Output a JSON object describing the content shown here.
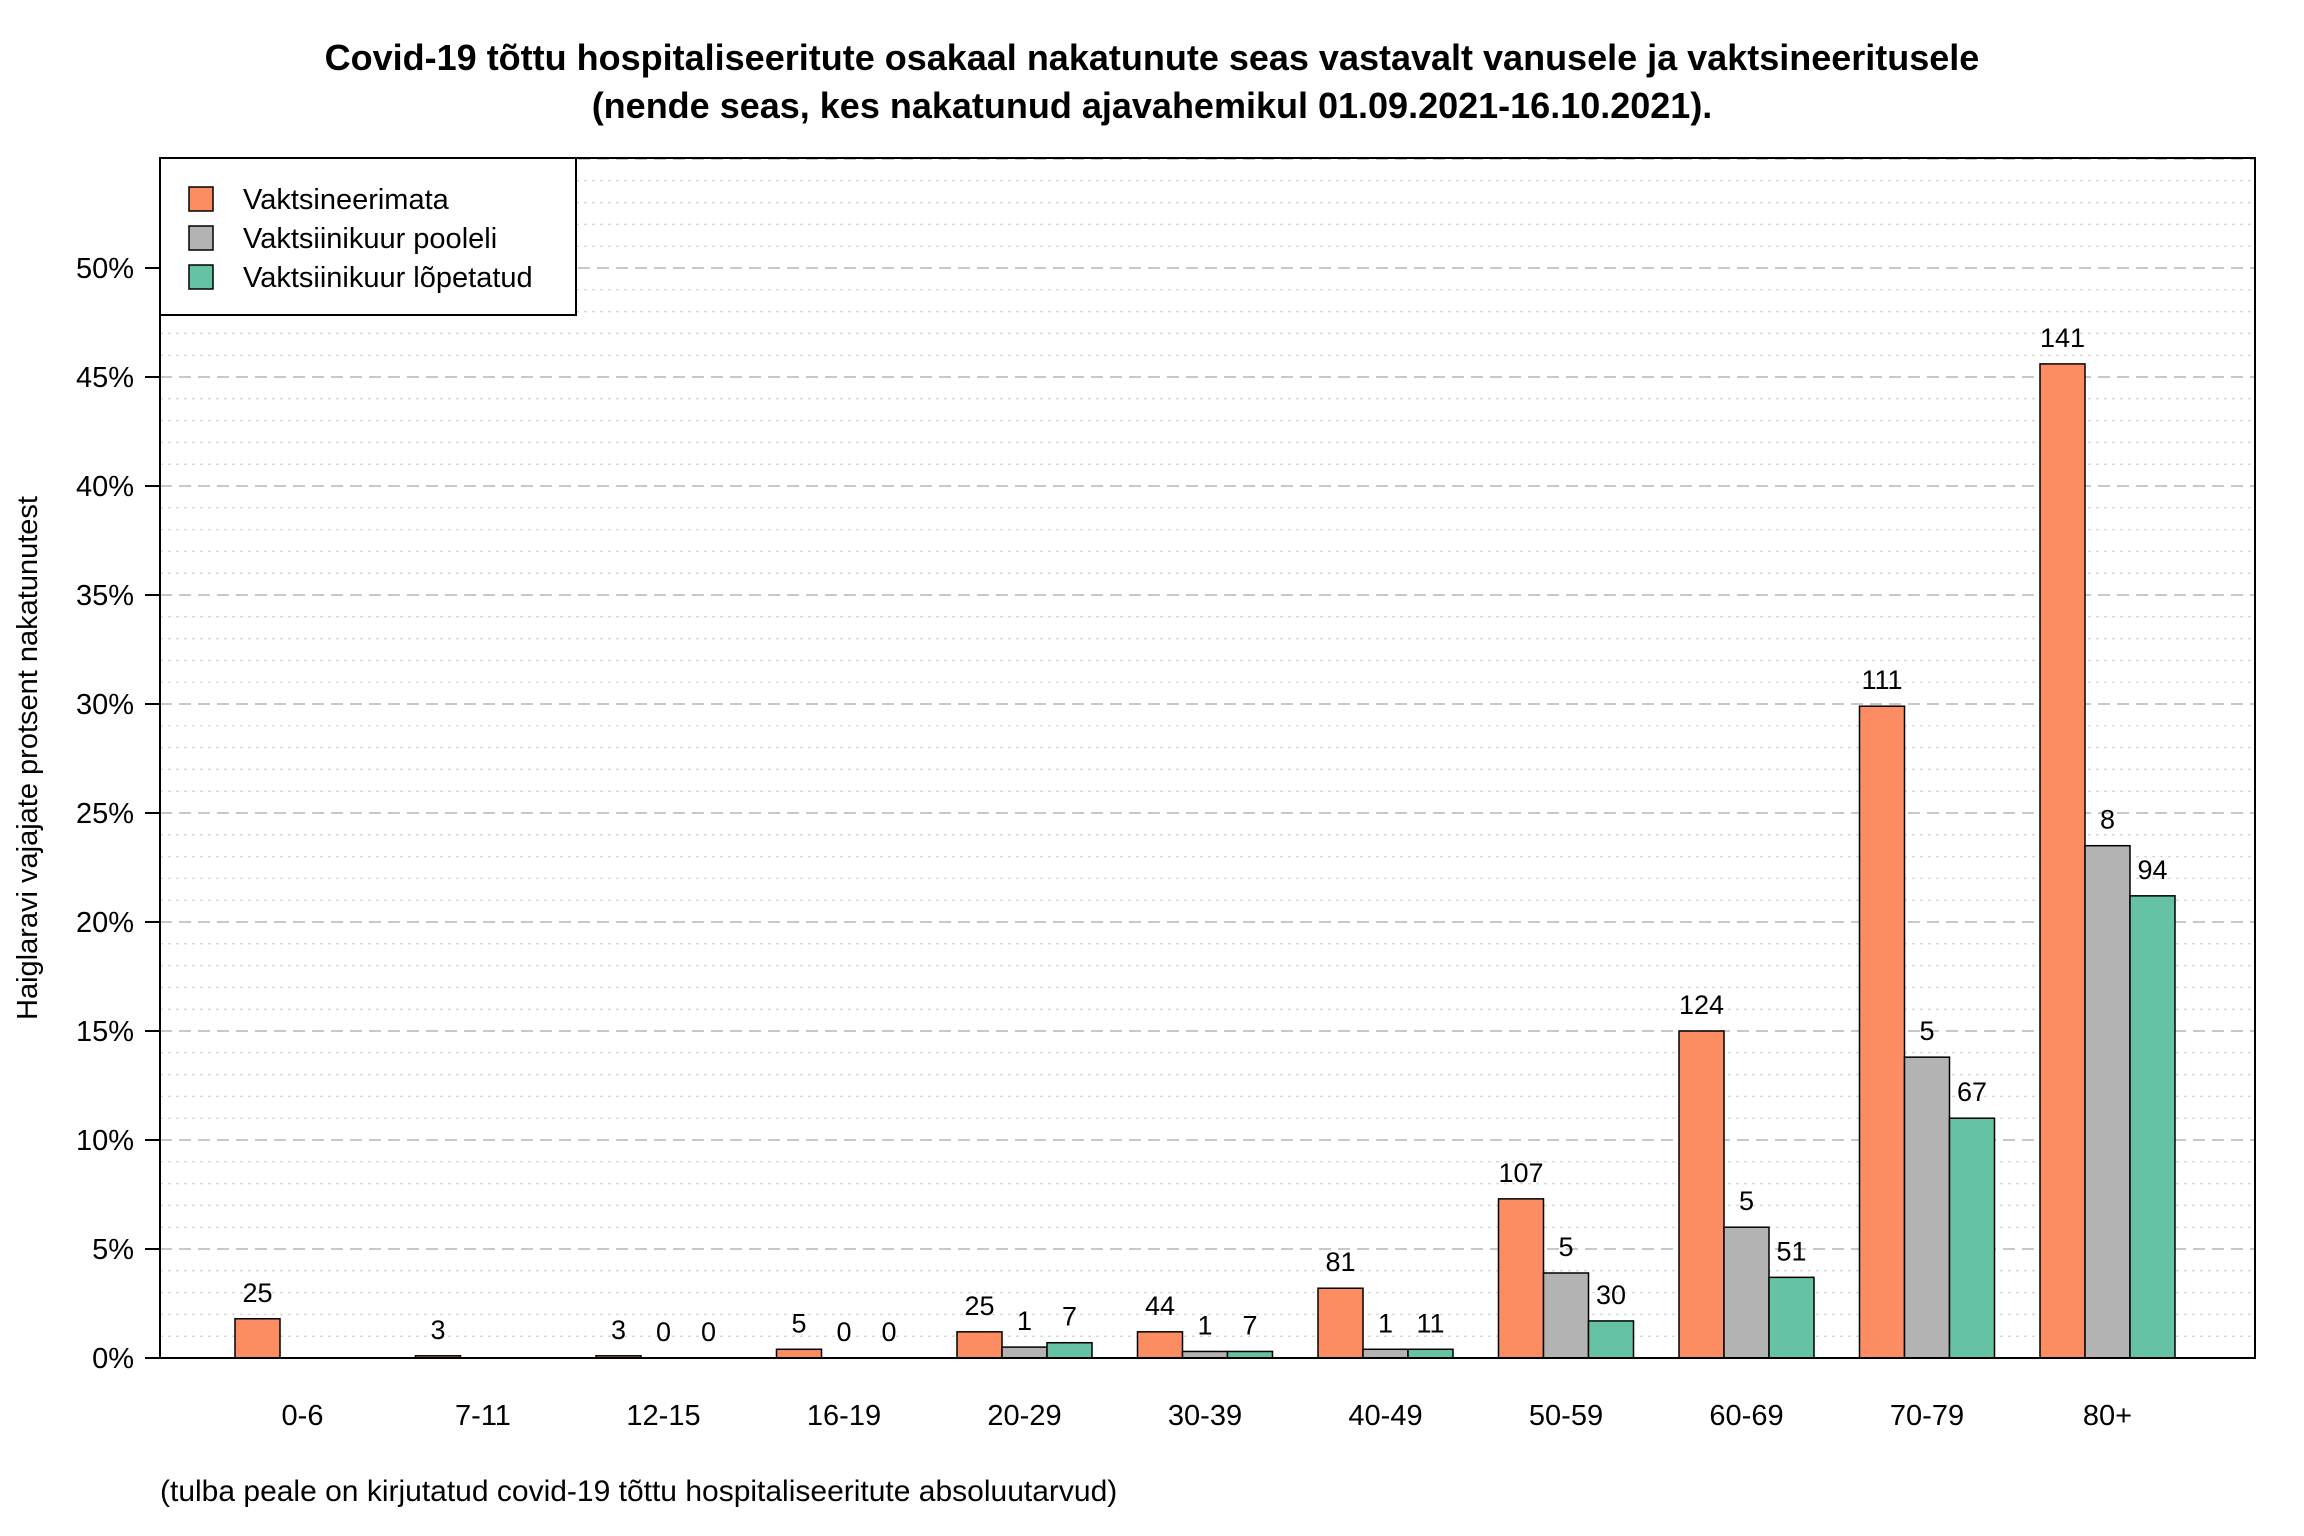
{
  "chart_data": {
    "type": "bar",
    "title": "Covid-19 tõttu hospitaliseeritute osakaal nakatunute seas vastavalt vanusele ja vaktsineeritusele",
    "subtitle": "(nende seas, kes nakatunud ajavahemikul 01.09.2021-16.10.2021).",
    "xlabel": "",
    "ylabel": "Haiglaravi vajajate protsent nakatunutest",
    "ylim": [
      0,
      55
    ],
    "yticks": [
      0,
      5,
      10,
      15,
      20,
      25,
      30,
      35,
      40,
      45,
      50
    ],
    "ytick_labels": [
      "0%",
      "5%",
      "10%",
      "15%",
      "20%",
      "25%",
      "30%",
      "35%",
      "40%",
      "45%",
      "50%"
    ],
    "grid": true,
    "legend_position": "top-left",
    "categories": [
      "0-6",
      "7-11",
      "12-15",
      "16-19",
      "20-29",
      "30-39",
      "40-49",
      "50-59",
      "60-69",
      "70-79",
      "80+"
    ],
    "series": [
      {
        "name": "Vaktsineerimata",
        "color": "#FC8D62",
        "values": [
          1.8,
          0.1,
          0.1,
          0.4,
          1.2,
          1.2,
          3.2,
          7.3,
          15.0,
          29.9,
          45.6
        ],
        "labels": [
          "25",
          "3",
          "3",
          "5",
          "25",
          "44",
          "81",
          "107",
          "124",
          "111",
          "141"
        ]
      },
      {
        "name": "Vaktsiinikuur pooleli",
        "color": "#B3B3B3",
        "values": [
          null,
          null,
          0,
          0,
          0.5,
          0.3,
          0.4,
          3.9,
          6.0,
          13.8,
          23.5
        ],
        "labels": [
          "",
          "",
          "0",
          "0",
          "1",
          "1",
          "1",
          "5",
          "5",
          "5",
          "8"
        ]
      },
      {
        "name": "Vaktsiinikuur lõpetatud",
        "color": "#66C2A5",
        "values": [
          null,
          null,
          0,
          0,
          0.7,
          0.3,
          0.4,
          1.7,
          3.7,
          11.0,
          21.2
        ],
        "labels": [
          "",
          "",
          "0",
          "0",
          "7",
          "7",
          "11",
          "30",
          "51",
          "67",
          "94"
        ]
      }
    ],
    "footnote": "(tulba peale on kirjutatud covid-19 tõttu hospitaliseeritute absoluutarvud)"
  }
}
